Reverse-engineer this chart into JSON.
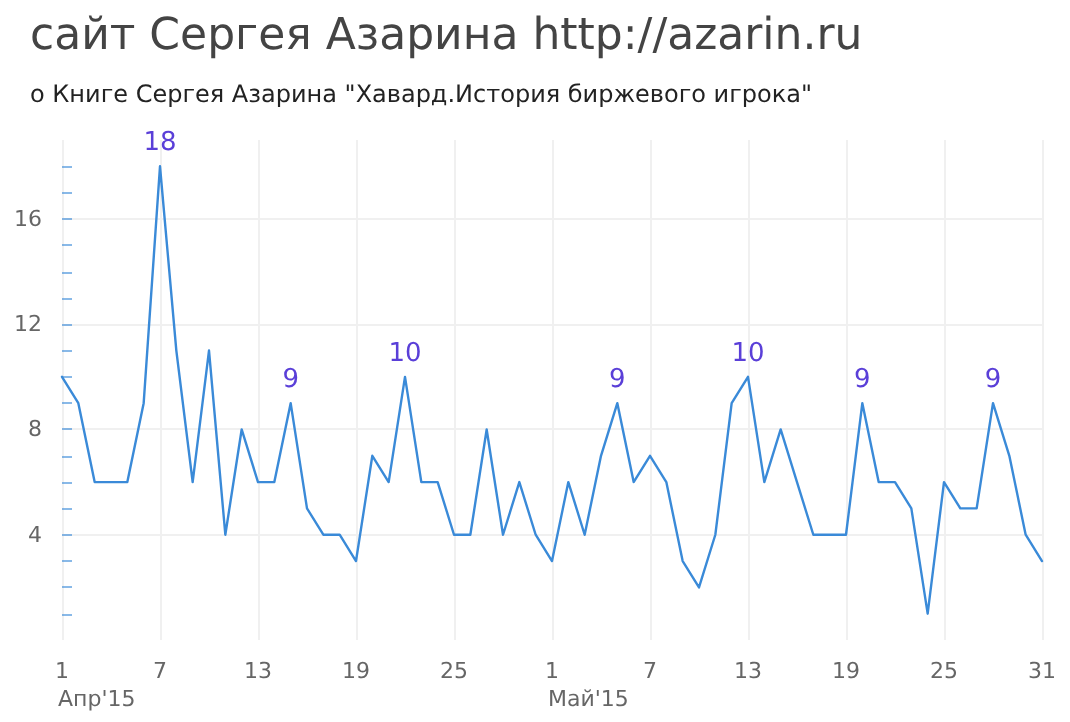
{
  "chart_data": {
    "type": "line",
    "title": "сайт Сергея Азарина http://azarin.ru",
    "subtitle": "о Книге Сергея Азарина \"Хавард.История биржевого игрока\"",
    "x": [
      "2015-04-01",
      "2015-04-02",
      "2015-04-03",
      "2015-04-04",
      "2015-04-05",
      "2015-04-06",
      "2015-04-07",
      "2015-04-08",
      "2015-04-09",
      "2015-04-10",
      "2015-04-11",
      "2015-04-12",
      "2015-04-13",
      "2015-04-14",
      "2015-04-15",
      "2015-04-16",
      "2015-04-17",
      "2015-04-18",
      "2015-04-19",
      "2015-04-20",
      "2015-04-21",
      "2015-04-22",
      "2015-04-23",
      "2015-04-24",
      "2015-04-25",
      "2015-04-26",
      "2015-04-27",
      "2015-04-28",
      "2015-04-29",
      "2015-04-30",
      "2015-05-01",
      "2015-05-02",
      "2015-05-03",
      "2015-05-04",
      "2015-05-05",
      "2015-05-06",
      "2015-05-07",
      "2015-05-08",
      "2015-05-09",
      "2015-05-10",
      "2015-05-11",
      "2015-05-12",
      "2015-05-13",
      "2015-05-14",
      "2015-05-15",
      "2015-05-16",
      "2015-05-17",
      "2015-05-18",
      "2015-05-19",
      "2015-05-20",
      "2015-05-21",
      "2015-05-22",
      "2015-05-23",
      "2015-05-24",
      "2015-05-25",
      "2015-05-26",
      "2015-05-27",
      "2015-05-28",
      "2015-05-29",
      "2015-05-30",
      "2015-05-31"
    ],
    "series": [
      {
        "color": "#3a8ad8",
        "values": [
          10,
          9,
          6,
          6,
          6,
          9,
          18,
          11,
          6,
          11,
          4,
          8,
          6,
          6,
          9,
          5,
          4,
          4,
          3,
          7,
          6,
          10,
          6,
          6,
          4,
          4,
          8,
          4,
          6,
          4,
          3,
          6,
          4,
          7,
          9,
          6,
          7,
          6,
          3,
          2,
          4,
          9,
          10,
          6,
          8,
          6,
          4,
          4,
          4,
          9,
          6,
          6,
          5,
          1,
          6,
          5,
          5,
          9,
          7,
          4,
          3
        ],
        "value_labels": [
          null,
          null,
          null,
          null,
          null,
          null,
          "18",
          null,
          null,
          null,
          null,
          null,
          null,
          null,
          "9",
          null,
          null,
          null,
          null,
          null,
          null,
          "10",
          null,
          null,
          null,
          null,
          null,
          null,
          null,
          null,
          null,
          null,
          null,
          null,
          "9",
          null,
          null,
          null,
          null,
          null,
          null,
          null,
          "10",
          null,
          null,
          null,
          null,
          null,
          null,
          "9",
          null,
          null,
          null,
          null,
          null,
          null,
          null,
          "9",
          null,
          null,
          null
        ]
      }
    ],
    "xlim": [
      "2015-04-01",
      "2015-05-31"
    ],
    "xticks": [
      {
        "value": "2015-04-01",
        "label": "1"
      },
      {
        "value": "2015-04-07",
        "label": "7"
      },
      {
        "value": "2015-04-13",
        "label": "13"
      },
      {
        "value": "2015-04-19",
        "label": "19"
      },
      {
        "value": "2015-04-25",
        "label": "25"
      },
      {
        "value": "2015-05-01",
        "label": "1"
      },
      {
        "value": "2015-05-07",
        "label": "7"
      },
      {
        "value": "2015-05-13",
        "label": "13"
      },
      {
        "value": "2015-05-19",
        "label": "19"
      },
      {
        "value": "2015-05-25",
        "label": "25"
      },
      {
        "value": "2015-05-31",
        "label": "31"
      }
    ],
    "ylim": [
      0,
      19
    ],
    "yticks": [
      {
        "value": 1,
        "label": null
      },
      {
        "value": 2,
        "label": null
      },
      {
        "value": 3,
        "label": null
      },
      4,
      {
        "value": 5,
        "label": null
      },
      {
        "value": 6,
        "label": null
      },
      {
        "value": 7,
        "label": null
      },
      8,
      {
        "value": 9,
        "label": null
      },
      {
        "value": 10,
        "label": null
      },
      {
        "value": 11,
        "label": null
      },
      12,
      {
        "value": 13,
        "label": null
      },
      {
        "value": 14,
        "label": null
      },
      {
        "value": 15,
        "label": null
      },
      16,
      {
        "value": 17,
        "label": null
      },
      {
        "value": 18,
        "label": null
      }
    ],
    "annotations": [
      "Апр'15",
      "Май'15"
    ],
    "grid": true,
    "marker": "none",
    "line_style": "solid"
  }
}
